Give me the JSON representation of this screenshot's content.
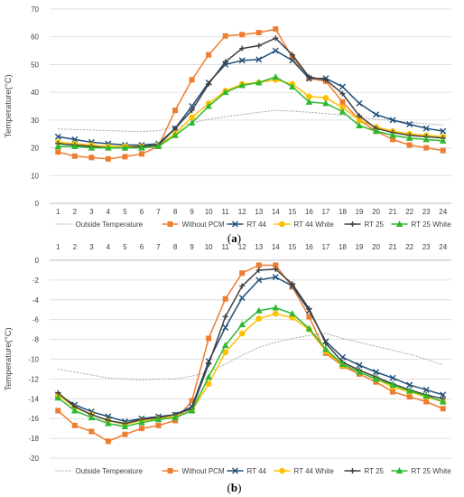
{
  "colors": {
    "Outside Temperature": "#a6a6a6",
    "Without PCM": "#ed7d31",
    "RT 44": "#1f4e79",
    "RT 44 White": "#ffc000",
    "RT 25": "#404040",
    "RT 25 White": "#2eb82e"
  },
  "markers": {
    "Outside Temperature": "none",
    "Without PCM": "square",
    "RT 44": "x",
    "RT 44 White": "circle",
    "RT 25": "plus",
    "RT 25 White": "triangle"
  },
  "chart_data": [
    {
      "type": "line",
      "panel_label": "a",
      "ylabel": "Temperature(°C)",
      "xlabel": "",
      "x": [
        1,
        2,
        3,
        4,
        5,
        6,
        7,
        8,
        9,
        10,
        11,
        12,
        13,
        14,
        15,
        16,
        17,
        18,
        19,
        20,
        21,
        22,
        23,
        24
      ],
      "xtick_position": "bottom",
      "ylim": [
        0,
        70
      ],
      "yticks": [
        0,
        10,
        20,
        30,
        40,
        50,
        60,
        70
      ],
      "grid": true,
      "legend": "bottom",
      "series": [
        {
          "name": "Outside Temperature",
          "values": [
            26.8,
            26.6,
            26.4,
            26.2,
            26.0,
            25.8,
            26.2,
            27.5,
            29.0,
            30.3,
            31.2,
            32.0,
            32.8,
            33.5,
            33.2,
            32.8,
            32.3,
            31.8,
            31.0,
            30.3,
            29.8,
            29.2,
            28.7,
            28.2
          ]
        },
        {
          "name": "Without PCM",
          "values": [
            18.5,
            17.0,
            16.5,
            16.0,
            16.8,
            17.8,
            20.5,
            33.5,
            44.5,
            53.5,
            60.3,
            60.8,
            61.5,
            62.8,
            52.5,
            45.0,
            44.0,
            36.5,
            30.0,
            26.0,
            23.0,
            21.0,
            20.0,
            19.0
          ]
        },
        {
          "name": "RT 44",
          "values": [
            24.0,
            23.0,
            22.0,
            21.5,
            21.0,
            21.0,
            21.5,
            27.0,
            35.0,
            43.5,
            50.0,
            51.5,
            51.8,
            55.0,
            51.5,
            45.0,
            45.0,
            42.0,
            36.0,
            32.0,
            30.0,
            28.5,
            27.0,
            26.0
          ]
        },
        {
          "name": "RT 44 White",
          "values": [
            22.0,
            21.5,
            21.0,
            20.5,
            20.5,
            20.5,
            21.0,
            25.0,
            31.0,
            36.0,
            40.5,
            43.0,
            43.5,
            44.5,
            43.0,
            38.5,
            38.0,
            34.5,
            30.0,
            27.5,
            26.0,
            25.0,
            24.5,
            24.0
          ]
        },
        {
          "name": "RT 25",
          "values": [
            21.5,
            21.0,
            20.5,
            20.0,
            20.0,
            20.5,
            21.0,
            27.0,
            33.5,
            43.0,
            51.0,
            55.8,
            56.8,
            59.5,
            53.5,
            45.5,
            44.5,
            39.5,
            31.5,
            27.0,
            25.5,
            24.5,
            24.0,
            23.5
          ]
        },
        {
          "name": "RT 25 White",
          "values": [
            20.5,
            20.5,
            20.0,
            20.0,
            20.0,
            20.0,
            20.5,
            24.5,
            29.0,
            35.0,
            40.0,
            42.5,
            43.5,
            45.5,
            42.0,
            36.5,
            36.0,
            33.0,
            28.0,
            26.0,
            24.5,
            23.5,
            23.0,
            22.5
          ]
        }
      ]
    },
    {
      "type": "line",
      "panel_label": "b",
      "ylabel": "Temperature(°C)",
      "xlabel": "",
      "x": [
        1,
        2,
        3,
        4,
        5,
        6,
        7,
        8,
        9,
        10,
        11,
        12,
        13,
        14,
        15,
        16,
        17,
        18,
        19,
        20,
        21,
        22,
        23,
        24
      ],
      "xtick_position": "top",
      "ylim": [
        -20,
        0
      ],
      "yticks": [
        -20,
        -18,
        -16,
        -14,
        -12,
        -10,
        -8,
        -6,
        -4,
        -2,
        0
      ],
      "grid": true,
      "legend": "bottom",
      "series": [
        {
          "name": "Outside Temperature",
          "values": [
            -11.0,
            -11.3,
            -11.6,
            -11.9,
            -12.0,
            -12.1,
            -12.0,
            -12.0,
            -11.7,
            -11.3,
            -10.5,
            -9.6,
            -8.8,
            -8.3,
            -7.9,
            -7.6,
            -7.4,
            -7.9,
            -8.3,
            -8.7,
            -9.1,
            -9.5,
            -10.0,
            -10.6
          ]
        },
        {
          "name": "Without PCM",
          "values": [
            -15.2,
            -16.7,
            -17.3,
            -18.3,
            -17.6,
            -17.0,
            -16.7,
            -16.2,
            -14.2,
            -7.9,
            -3.9,
            -1.3,
            -0.5,
            -0.5,
            -2.7,
            -5.7,
            -9.4,
            -10.7,
            -11.5,
            -12.3,
            -13.3,
            -13.8,
            -14.3,
            -15.0
          ]
        },
        {
          "name": "RT 44",
          "values": [
            -13.6,
            -14.6,
            -15.3,
            -15.8,
            -16.3,
            -16.0,
            -15.8,
            -15.6,
            -14.8,
            -10.2,
            -6.8,
            -3.8,
            -2.0,
            -1.7,
            -2.6,
            -5.1,
            -8.2,
            -9.8,
            -10.6,
            -11.3,
            -11.9,
            -12.6,
            -13.1,
            -13.6
          ]
        },
        {
          "name": "RT 44 White",
          "values": [
            -13.6,
            -14.9,
            -15.6,
            -16.2,
            -16.6,
            -16.2,
            -16.0,
            -15.8,
            -15.2,
            -12.5,
            -9.3,
            -7.4,
            -5.9,
            -5.4,
            -5.8,
            -7.0,
            -9.2,
            -10.6,
            -11.3,
            -12.0,
            -12.8,
            -13.3,
            -13.8,
            -14.3
          ]
        },
        {
          "name": "RT 25",
          "values": [
            -13.4,
            -14.8,
            -15.6,
            -16.2,
            -16.5,
            -16.1,
            -15.9,
            -15.6,
            -15.0,
            -10.5,
            -5.7,
            -2.6,
            -1.0,
            -0.9,
            -2.4,
            -4.9,
            -8.4,
            -10.3,
            -11.1,
            -11.8,
            -12.5,
            -13.1,
            -13.6,
            -14.0
          ]
        },
        {
          "name": "RT 25 White",
          "values": [
            -13.9,
            -15.2,
            -15.9,
            -16.5,
            -16.8,
            -16.4,
            -16.1,
            -15.9,
            -15.2,
            -11.8,
            -8.6,
            -6.5,
            -5.1,
            -4.8,
            -5.4,
            -6.9,
            -9.0,
            -10.5,
            -11.3,
            -12.0,
            -12.6,
            -13.2,
            -13.7,
            -14.3
          ]
        }
      ]
    }
  ]
}
